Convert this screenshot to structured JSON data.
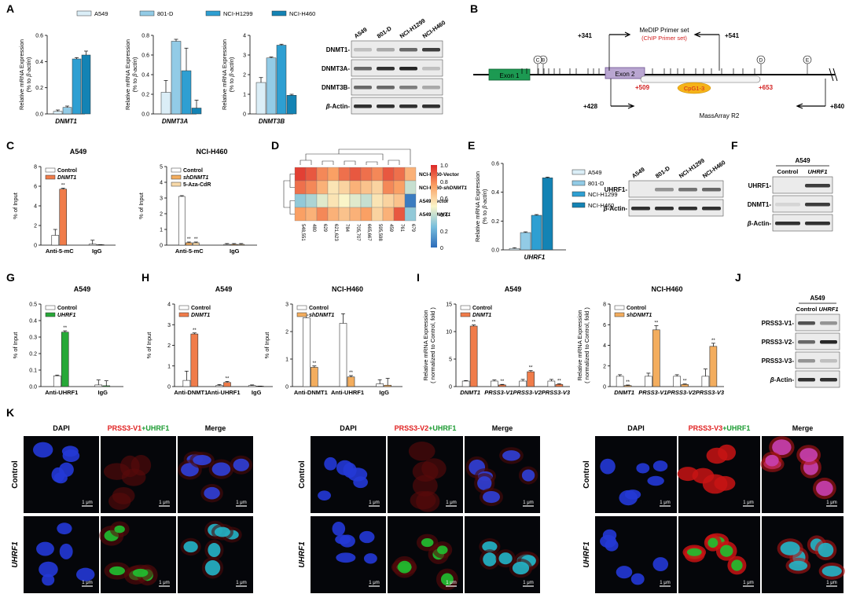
{
  "colors": {
    "A549": "#dbeef7",
    "801-D": "#92cbe6",
    "NCI-H1299": "#2e9fd2",
    "NCI-H460": "#1383b4",
    "control": "#ffffff",
    "orange": "#f07c4a",
    "tan": "#f3ad5e",
    "green": "#27a838"
  },
  "panel_letters": [
    "A",
    "B",
    "C",
    "D",
    "E",
    "F",
    "G",
    "H",
    "I",
    "J",
    "K"
  ],
  "legend_A": [
    "A549",
    "801-D",
    "NCI-H1299",
    "NCI-H460"
  ],
  "legend_E": [
    "A549",
    "801-D",
    "NCI-H1299",
    "NCI-H460"
  ],
  "sig": "**",
  "chart_data": [
    {
      "id": "A1",
      "type": "bar",
      "ylabel": "Relative mRNA Expression\n(% to β-actin)",
      "xlabel": "DNMT1",
      "ylim": [
        0,
        0.6
      ],
      "ticks": [
        "0.0",
        "0.2",
        "0.4",
        "0.6"
      ],
      "categories": [
        "A549",
        "801-D",
        "NCI-H1299",
        "NCI-H460"
      ],
      "values": [
        0.02,
        0.05,
        0.42,
        0.45
      ],
      "errors": [
        0.01,
        0.01,
        0.01,
        0.03
      ]
    },
    {
      "id": "A2",
      "type": "bar",
      "ylabel": "Relative mRNA Expression\n(% to β-actin)",
      "xlabel": "DNMT3A",
      "ylim": [
        0,
        0.8
      ],
      "ticks": [
        "0.0",
        "0.2",
        "0.4",
        "0.6",
        "0.8"
      ],
      "categories": [
        "A549",
        "801-D",
        "NCI-H1299",
        "NCI-H460"
      ],
      "values": [
        0.22,
        0.74,
        0.44,
        0.06
      ],
      "errors": [
        0.12,
        0.02,
        0.23,
        0.08
      ]
    },
    {
      "id": "A3",
      "type": "bar",
      "ylabel": "Relative mRNA Expression\n(% to β-actin)",
      "xlabel": "DNMT3B",
      "ylim": [
        0,
        4
      ],
      "ticks": [
        "0",
        "1",
        "2",
        "3",
        "4"
      ],
      "categories": [
        "A549",
        "801-D",
        "NCI-H1299",
        "NCI-H460"
      ],
      "values": [
        1.6,
        2.85,
        3.5,
        0.95
      ],
      "errors": [
        0.25,
        0.05,
        0.05,
        0.05
      ]
    },
    {
      "id": "C1",
      "type": "bar",
      "title": "A549",
      "ylabel": "% of Input",
      "ylim": [
        0,
        8
      ],
      "ticks": [
        "0",
        "2",
        "4",
        "6",
        "8"
      ],
      "groups": [
        "Anti-5-mC",
        "IgG"
      ],
      "series": [
        {
          "name": "Control",
          "values": [
            1.0,
            0.1
          ]
        },
        {
          "name": "DNMT1",
          "values": [
            5.7,
            0.0
          ]
        }
      ],
      "errors": [
        [
          0.6,
          0.4
        ],
        [
          0.1,
          0
        ]
      ],
      "legend": [
        "Control",
        "DNMT1"
      ]
    },
    {
      "id": "C2",
      "type": "bar",
      "title": "NCI-H460",
      "ylabel": "% of Input",
      "ylim": [
        0,
        5
      ],
      "ticks": [
        "0",
        "1",
        "2",
        "3",
        "4",
        "5"
      ],
      "groups": [
        "Anti-5-mC",
        "IgG"
      ],
      "series": [
        {
          "name": "Control",
          "values": [
            3.1,
            0.05
          ]
        },
        {
          "name": "shDNMT1",
          "values": [
            0.15,
            0.05
          ]
        },
        {
          "name": "5-Aza-CdR",
          "values": [
            0.15,
            0.05
          ]
        }
      ],
      "errors": [
        [
          0.05,
          0.05
        ],
        [
          0.05,
          0.05
        ],
        [
          0.05,
          0.05
        ]
      ],
      "legend": [
        "Control",
        "shDNMT1",
        "5-Aza-CdR"
      ]
    },
    {
      "id": "D",
      "type": "heatmap",
      "rows": [
        "NCI-H460-Vector",
        "NCI-H460-shDNMT1",
        "A549-Vector",
        "A549-DNMT1"
      ],
      "cols": [
        "548,551",
        "480",
        "629",
        "621,623",
        "784",
        "705,707",
        "665,667",
        "595,598",
        "459",
        "761",
        "679"
      ],
      "values": [
        [
          0.95,
          0.9,
          0.8,
          0.75,
          0.85,
          0.9,
          0.85,
          0.8,
          0.9,
          0.85,
          0.7
        ],
        [
          0.85,
          0.8,
          0.7,
          0.55,
          0.6,
          0.7,
          0.65,
          0.6,
          0.8,
          0.75,
          0.4
        ],
        [
          0.3,
          0.35,
          0.45,
          0.55,
          0.5,
          0.45,
          0.4,
          0.55,
          0.6,
          0.65,
          0.05
        ],
        [
          0.75,
          0.7,
          0.8,
          0.7,
          0.65,
          0.7,
          0.75,
          0.6,
          0.7,
          0.9,
          0.3
        ]
      ],
      "scale": [
        "1.0",
        "0.8",
        "0.6",
        "0.4",
        "0.2",
        "0"
      ]
    },
    {
      "id": "E",
      "type": "bar",
      "ylabel": "Relative mRNA Expression\n(% to β-actin)",
      "xlabel": "UHRF1",
      "ylim": [
        0,
        0.6
      ],
      "ticks": [
        "0.0",
        "0.2",
        "0.4",
        "0.6"
      ],
      "categories": [
        "A549",
        "801-D",
        "NCI-H1299",
        "NCI-H460"
      ],
      "values": [
        0.01,
        0.12,
        0.24,
        0.5
      ],
      "errors": [
        0.005,
        0.005,
        0.005,
        0.005
      ]
    },
    {
      "id": "G",
      "type": "bar",
      "title": "A549",
      "ylabel": "% of Input",
      "ylim": [
        0,
        0.5
      ],
      "ticks": [
        "0.0",
        "0.1",
        "0.2",
        "0.3",
        "0.4",
        "0.5"
      ],
      "groups": [
        "Anti-UHRF1",
        "IgG"
      ],
      "series": [
        {
          "name": "Control",
          "values": [
            0.065,
            0.01
          ]
        },
        {
          "name": "UHRF1",
          "values": [
            0.33,
            0.005
          ]
        }
      ],
      "errors": [
        [
          0.005,
          0.03
        ],
        [
          0.008,
          0.03
        ]
      ],
      "legend": [
        "Control",
        "UHRF1"
      ]
    },
    {
      "id": "H1",
      "type": "bar",
      "title": "A549",
      "ylabel": "% of Input",
      "ylim": [
        0,
        4
      ],
      "ticks": [
        "0",
        "1",
        "2",
        "3",
        "4"
      ],
      "groups": [
        "Anti-DNMT1",
        "Anti-UHRF1",
        "IgG"
      ],
      "series": [
        {
          "name": "Control",
          "values": [
            0.3,
            0.05,
            0.05
          ]
        },
        {
          "name": "DNMT1",
          "values": [
            2.55,
            0.2,
            0.0
          ]
        }
      ],
      "errors": [
        [
          0.45,
          0.05,
          0.03
        ],
        [
          0.05,
          0.05,
          0
        ]
      ],
      "legend": [
        "Control",
        "DNMT1"
      ]
    },
    {
      "id": "H2",
      "type": "bar",
      "title": "NCI-H460",
      "ylabel": "% of Input",
      "ylim": [
        0,
        3
      ],
      "ticks": [
        "0",
        "1",
        "2",
        "3"
      ],
      "groups": [
        "Anti-DNMT1",
        "Anti-UHRF1",
        "IgG"
      ],
      "series": [
        {
          "name": "Control",
          "values": [
            2.5,
            2.3,
            0.1
          ]
        },
        {
          "name": "shDNMT1",
          "values": [
            0.7,
            0.35,
            0.05
          ]
        }
      ],
      "errors": [
        [
          0.1,
          0.35,
          0.15
        ],
        [
          0.05,
          0.05,
          0.25
        ]
      ],
      "legend": [
        "Control",
        "shDNMT1"
      ]
    },
    {
      "id": "I1",
      "type": "bar",
      "title": "A549",
      "ylabel": "Relative mRNA Expression\n( normalized to Control, fold )",
      "ylim": [
        0,
        15
      ],
      "ticks": [
        "0",
        "5",
        "10",
        "15"
      ],
      "groups": [
        "DNMT1",
        "PRSS3-V1",
        "PRSS3-V2",
        "PRSS3-V3"
      ],
      "series": [
        {
          "name": "Control",
          "values": [
            1,
            1,
            1,
            1
          ]
        },
        {
          "name": "DNMT1",
          "values": [
            11,
            0.3,
            2.7,
            0.4
          ]
        }
      ],
      "errors": [
        [
          0.1,
          0.2,
          0.3,
          0.3
        ],
        [
          0.2,
          0.1,
          0.2,
          0.1
        ]
      ],
      "legend": [
        "Control",
        "DNMT1"
      ]
    },
    {
      "id": "I2",
      "type": "bar",
      "title": "NCI-H460",
      "ylabel": "Relative mRNA Expression\n( normalized to Control, fold )",
      "ylim": [
        0,
        8
      ],
      "ticks": [
        "0",
        "2",
        "4",
        "6",
        "8"
      ],
      "groups": [
        "DNMT1",
        "PRSS3-V1",
        "PRSS3-V2",
        "PRSS3-V3"
      ],
      "series": [
        {
          "name": "Control",
          "values": [
            1,
            1,
            1,
            1
          ]
        },
        {
          "name": "shDNMT1",
          "values": [
            0.1,
            5.5,
            0.2,
            3.9
          ]
        }
      ],
      "errors": [
        [
          0.15,
          0.3,
          0.15,
          0.7
        ],
        [
          0.05,
          0.4,
          0.05,
          0.3
        ]
      ],
      "legend": [
        "Control",
        "shDNMT1"
      ]
    }
  ],
  "blotA": {
    "lanes": [
      "A549",
      "801-D",
      "NCI-H1299",
      "NCI-H460"
    ],
    "rows": [
      "DNMT1-",
      "DNMT3A-",
      "DNMT3B-",
      "β-Actin-"
    ]
  },
  "blotE": {
    "lanes": [
      "A549",
      "801-D",
      "NCI-H1299",
      "NCI-H460"
    ],
    "rows": [
      "UHRF1-",
      "β-Actin-"
    ]
  },
  "blotF": {
    "title": "A549",
    "lanes": [
      "Control",
      "UHRF1"
    ],
    "rows": [
      "UHRF1-",
      "DNMT1-",
      "β-Actin-"
    ]
  },
  "blotJ": {
    "title": "A549",
    "lanes": [
      "Control",
      "UHRF1"
    ],
    "rows": [
      "PRSS3-V1-",
      "PRSS3-V2-",
      "PRSS3-V3-",
      "β-Actin-"
    ]
  },
  "diagramB": {
    "primer_top": "MeDIP Primer set",
    "primer_top_sub": "(ChIP Primer set)",
    "pos_341": "+341",
    "pos_541": "+541",
    "exon1": "Exon 1",
    "exon2": "Exon 2",
    "cpg": "CpG1-3",
    "pos_509": "+509",
    "pos_653": "+653",
    "pos_428": "+428",
    "pos_840": "+840",
    "massarray": "MassArray R2",
    "sites": [
      "B",
      "C",
      "D",
      "E"
    ]
  },
  "panelK": {
    "groups": [
      {
        "titles": [
          "DAPI",
          "PRSS3-V1",
          "+",
          "UHRF1",
          "Merge"
        ]
      },
      {
        "titles": [
          "DAPI",
          "PRSS3-V2",
          "+",
          "UHRF1",
          "Merge"
        ]
      },
      {
        "titles": [
          "DAPI",
          "PRSS3-V3",
          "+",
          "UHRF1",
          "Merge"
        ]
      }
    ],
    "rows": [
      "Control",
      "UHRF1"
    ],
    "scalebar": "1 μm"
  }
}
